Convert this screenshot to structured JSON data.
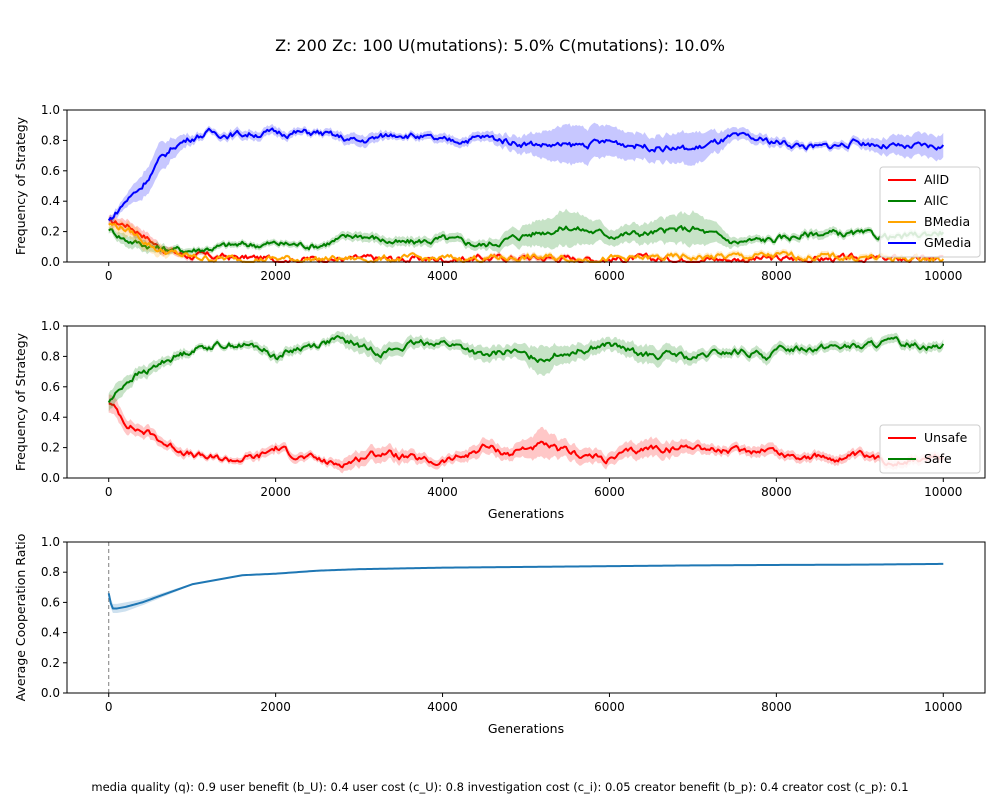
{
  "figure": {
    "title": "Z: 200  Zc: 100  U(mutations): 5.0%  C(mutations): 10.0%",
    "footer": "media quality (q): 0.9  user benefit (b_U): 0.4  user cost (c_U): 0.8  investigation cost (c_i): 0.05  creator benefit (b_p): 0.4  creator cost (c_p): 0.1"
  },
  "colors": {
    "AllD": "#ff0000",
    "AllC": "#008000",
    "BMedia": "#ffa500",
    "GMedia": "#0000ff",
    "Unsafe": "#ff0000",
    "Safe": "#008000",
    "coop": "#1f77b4"
  },
  "chart_data": [
    {
      "type": "line",
      "xlabel": "",
      "ylabel": "Frequency of Strategy",
      "xlim": [
        -500,
        10500
      ],
      "ylim": [
        0,
        1
      ],
      "xticks": [
        0,
        2000,
        4000,
        6000,
        8000,
        10000
      ],
      "yticks": [
        0.0,
        0.2,
        0.4,
        0.6,
        0.8,
        1.0
      ],
      "legend_position": "right",
      "shaded_band": true,
      "series": [
        {
          "name": "AllD",
          "color": "#ff0000",
          "x": [
            0,
            200,
            400,
            600,
            800,
            1000,
            1500,
            2000,
            3000,
            4000,
            5000,
            6000,
            7000,
            8000,
            9000,
            10000
          ],
          "y": [
            0.26,
            0.25,
            0.19,
            0.1,
            0.06,
            0.04,
            0.03,
            0.02,
            0.02,
            0.02,
            0.03,
            0.02,
            0.02,
            0.02,
            0.02,
            0.02
          ],
          "band": [
            0.03,
            0.04,
            0.04,
            0.03,
            0.02,
            0.02,
            0.01,
            0.01,
            0.01,
            0.01,
            0.02,
            0.01,
            0.01,
            0.01,
            0.01,
            0.01
          ]
        },
        {
          "name": "AllC",
          "color": "#008000",
          "x": [
            0,
            200,
            400,
            600,
            800,
            1000,
            1500,
            2000,
            2500,
            3000,
            3500,
            4000,
            4500,
            5000,
            5500,
            6000,
            6500,
            7000,
            7500,
            8000,
            8500,
            9000,
            9500,
            10000
          ],
          "y": [
            0.22,
            0.15,
            0.12,
            0.09,
            0.08,
            0.08,
            0.11,
            0.12,
            0.11,
            0.18,
            0.12,
            0.15,
            0.11,
            0.18,
            0.23,
            0.18,
            0.19,
            0.22,
            0.13,
            0.15,
            0.19,
            0.18,
            0.16,
            0.2
          ],
          "band": [
            0.02,
            0.04,
            0.04,
            0.03,
            0.02,
            0.02,
            0.02,
            0.02,
            0.02,
            0.03,
            0.03,
            0.03,
            0.03,
            0.07,
            0.12,
            0.05,
            0.07,
            0.11,
            0.03,
            0.02,
            0.03,
            0.02,
            0.02,
            0.03
          ]
        },
        {
          "name": "BMedia",
          "color": "#ffa500",
          "x": [
            0,
            200,
            400,
            600,
            800,
            1000,
            1500,
            2000,
            3000,
            4000,
            5000,
            6000,
            7000,
            8000,
            9000,
            10000
          ],
          "y": [
            0.25,
            0.22,
            0.15,
            0.08,
            0.05,
            0.03,
            0.02,
            0.02,
            0.02,
            0.02,
            0.03,
            0.02,
            0.03,
            0.04,
            0.03,
            0.02
          ],
          "band": [
            0.03,
            0.05,
            0.05,
            0.04,
            0.02,
            0.01,
            0.01,
            0.01,
            0.01,
            0.01,
            0.02,
            0.01,
            0.02,
            0.02,
            0.02,
            0.01
          ]
        },
        {
          "name": "GMedia",
          "color": "#0000ff",
          "x": [
            0,
            100,
            200,
            400,
            600,
            800,
            1000,
            1200,
            1500,
            2000,
            2500,
            3000,
            3500,
            4000,
            4500,
            5000,
            5500,
            6000,
            6500,
            7000,
            7500,
            8000,
            8500,
            9000,
            9500,
            10000
          ],
          "y": [
            0.27,
            0.33,
            0.4,
            0.5,
            0.66,
            0.77,
            0.82,
            0.85,
            0.84,
            0.85,
            0.85,
            0.79,
            0.85,
            0.79,
            0.82,
            0.78,
            0.76,
            0.79,
            0.76,
            0.74,
            0.82,
            0.79,
            0.75,
            0.79,
            0.75,
            0.76
          ],
          "band": [
            0.02,
            0.03,
            0.04,
            0.08,
            0.1,
            0.06,
            0.03,
            0.02,
            0.03,
            0.03,
            0.02,
            0.04,
            0.02,
            0.03,
            0.03,
            0.06,
            0.13,
            0.1,
            0.08,
            0.11,
            0.04,
            0.03,
            0.02,
            0.03,
            0.07,
            0.08
          ]
        }
      ]
    },
    {
      "type": "line",
      "xlabel": "Generations",
      "ylabel": "Frequency of Strategy",
      "xlim": [
        -500,
        10500
      ],
      "ylim": [
        0,
        1
      ],
      "xticks": [
        0,
        2000,
        4000,
        6000,
        8000,
        10000
      ],
      "yticks": [
        0.0,
        0.2,
        0.4,
        0.6,
        0.8,
        1.0
      ],
      "legend_position": "lower-right",
      "shaded_band": true,
      "series": [
        {
          "name": "Unsafe",
          "color": "#ff0000",
          "x": [
            0,
            100,
            200,
            300,
            400,
            500,
            700,
            900,
            1000,
            1200,
            1500,
            1800,
            2000,
            2300,
            2500,
            2700,
            2900,
            3100,
            3300,
            3600,
            3900,
            4100,
            4300,
            4500,
            4800,
            5000,
            5200,
            5400,
            5700,
            6000,
            6200,
            6500,
            6800,
            7000,
            7300,
            7600,
            7900,
            8100,
            8400,
            8700,
            9000,
            9300,
            9600,
            10000
          ],
          "y": [
            0.5,
            0.44,
            0.37,
            0.33,
            0.31,
            0.29,
            0.22,
            0.18,
            0.15,
            0.13,
            0.12,
            0.14,
            0.2,
            0.14,
            0.12,
            0.09,
            0.11,
            0.15,
            0.17,
            0.13,
            0.1,
            0.12,
            0.15,
            0.21,
            0.16,
            0.2,
            0.21,
            0.18,
            0.15,
            0.12,
            0.16,
            0.2,
            0.19,
            0.22,
            0.18,
            0.17,
            0.2,
            0.15,
            0.14,
            0.13,
            0.14,
            0.11,
            0.12,
            0.13
          ],
          "band": [
            0.06,
            0.06,
            0.05,
            0.04,
            0.04,
            0.04,
            0.03,
            0.03,
            0.02,
            0.02,
            0.02,
            0.03,
            0.03,
            0.03,
            0.02,
            0.03,
            0.05,
            0.05,
            0.05,
            0.04,
            0.03,
            0.03,
            0.04,
            0.05,
            0.04,
            0.06,
            0.1,
            0.06,
            0.05,
            0.04,
            0.05,
            0.06,
            0.05,
            0.04,
            0.03,
            0.03,
            0.04,
            0.03,
            0.03,
            0.03,
            0.03,
            0.03,
            0.03,
            0.03
          ]
        },
        {
          "name": "Safe",
          "color": "#008000",
          "x": [
            0,
            100,
            200,
            300,
            400,
            500,
            700,
            900,
            1000,
            1200,
            1500,
            1800,
            2000,
            2300,
            2500,
            2700,
            2900,
            3100,
            3300,
            3600,
            3900,
            4100,
            4300,
            4500,
            4800,
            5000,
            5200,
            5400,
            5700,
            6000,
            6200,
            6500,
            6800,
            7000,
            7300,
            7600,
            7900,
            8100,
            8400,
            8700,
            9000,
            9300,
            9600,
            10000
          ],
          "y": [
            0.5,
            0.56,
            0.63,
            0.67,
            0.69,
            0.71,
            0.78,
            0.82,
            0.85,
            0.87,
            0.88,
            0.86,
            0.8,
            0.86,
            0.88,
            0.91,
            0.89,
            0.85,
            0.83,
            0.87,
            0.9,
            0.88,
            0.85,
            0.79,
            0.84,
            0.8,
            0.79,
            0.82,
            0.85,
            0.88,
            0.84,
            0.8,
            0.81,
            0.78,
            0.82,
            0.83,
            0.8,
            0.85,
            0.86,
            0.87,
            0.86,
            0.89,
            0.88,
            0.87
          ],
          "band": [
            0.06,
            0.06,
            0.05,
            0.04,
            0.04,
            0.04,
            0.03,
            0.03,
            0.02,
            0.02,
            0.02,
            0.03,
            0.03,
            0.03,
            0.02,
            0.03,
            0.05,
            0.05,
            0.05,
            0.04,
            0.03,
            0.03,
            0.04,
            0.05,
            0.04,
            0.06,
            0.1,
            0.06,
            0.05,
            0.04,
            0.05,
            0.06,
            0.05,
            0.04,
            0.03,
            0.03,
            0.04,
            0.03,
            0.03,
            0.03,
            0.03,
            0.03,
            0.03,
            0.03
          ]
        }
      ]
    },
    {
      "type": "line",
      "xlabel": "Generations",
      "ylabel": "Average Cooperation Ratio",
      "xlim": [
        -500,
        10500
      ],
      "ylim": [
        0,
        1
      ],
      "xticks": [
        0,
        2000,
        4000,
        6000,
        8000,
        10000
      ],
      "yticks": [
        0.0,
        0.2,
        0.4,
        0.6,
        0.8,
        1.0
      ],
      "vline_x": 0,
      "shaded_band": true,
      "series": [
        {
          "name": "",
          "color": "#1f77b4",
          "x": [
            0,
            20,
            50,
            100,
            200,
            400,
            600,
            800,
            1000,
            1300,
            1600,
            2000,
            2500,
            3000,
            4000,
            5000,
            6000,
            7000,
            8000,
            9000,
            10000
          ],
          "y": [
            0.66,
            0.6,
            0.56,
            0.56,
            0.57,
            0.6,
            0.64,
            0.68,
            0.72,
            0.75,
            0.78,
            0.79,
            0.81,
            0.82,
            0.83,
            0.835,
            0.84,
            0.845,
            0.848,
            0.85,
            0.855
          ],
          "band": [
            0.02,
            0.03,
            0.03,
            0.03,
            0.03,
            0.02,
            0.015,
            0.01,
            0.005,
            0.003,
            0.003,
            0.002,
            0.002,
            0.002,
            0.002,
            0.002,
            0.002,
            0.002,
            0.002,
            0.002,
            0.002
          ]
        }
      ]
    }
  ]
}
